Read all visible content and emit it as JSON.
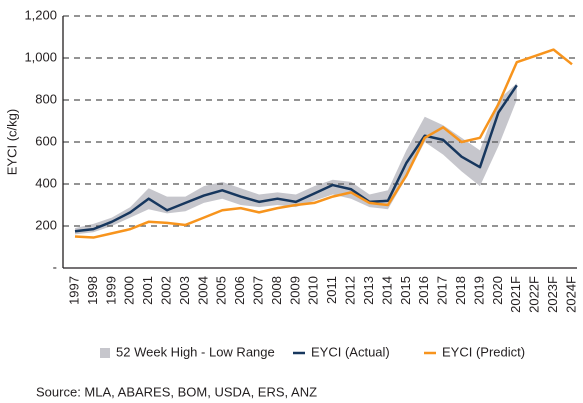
{
  "chart_data": {
    "type": "line",
    "y_label": "EYCI (c/kg)",
    "categories": [
      "1997",
      "1998",
      "1999",
      "2000",
      "2001",
      "2002",
      "2003",
      "2004",
      "2005",
      "2006",
      "2007",
      "2008",
      "2009",
      "2010",
      "2011",
      "2012",
      "2013",
      "2014",
      "2015",
      "2016",
      "2017",
      "2018",
      "2019",
      "2020",
      "2021F",
      "2022F",
      "2023F",
      "2024F"
    ],
    "range": {
      "name": "52 Week High - Low Range",
      "color": "#c6c6cc",
      "low": [
        160,
        170,
        200,
        240,
        280,
        260,
        270,
        310,
        330,
        300,
        290,
        300,
        290,
        320,
        350,
        330,
        290,
        280,
        430,
        600,
        540,
        460,
        390,
        580,
        800,
        null,
        null,
        null
      ],
      "high": [
        190,
        210,
        240,
        290,
        380,
        340,
        340,
        390,
        410,
        380,
        350,
        360,
        350,
        390,
        420,
        410,
        350,
        370,
        560,
        720,
        680,
        620,
        560,
        800,
        880,
        null,
        null,
        null
      ]
    },
    "series": [
      {
        "name": "EYCI (Actual)",
        "color": "#17375e",
        "values": [
          175,
          185,
          220,
          265,
          330,
          275,
          310,
          345,
          370,
          340,
          315,
          330,
          315,
          355,
          395,
          375,
          315,
          320,
          500,
          630,
          610,
          530,
          480,
          740,
          870,
          null,
          null,
          null
        ]
      },
      {
        "name": "EYCI (Predict)",
        "color": "#f7941d",
        "values": [
          150,
          145,
          165,
          185,
          220,
          215,
          205,
          240,
          275,
          285,
          265,
          285,
          300,
          310,
          340,
          360,
          310,
          300,
          440,
          620,
          670,
          600,
          620,
          780,
          980,
          1010,
          1040,
          970
        ]
      }
    ],
    "ylim": [
      0,
      1200
    ],
    "yticks": [
      {
        "value": 0,
        "label": "-"
      },
      200,
      400,
      600,
      800,
      {
        "value": 1000,
        "label": "1,000"
      },
      {
        "value": 1200,
        "label": "1,200"
      }
    ],
    "grid": true,
    "source": "Source: MLA, ABARES, BOM, USDA, ERS, ANZ"
  }
}
